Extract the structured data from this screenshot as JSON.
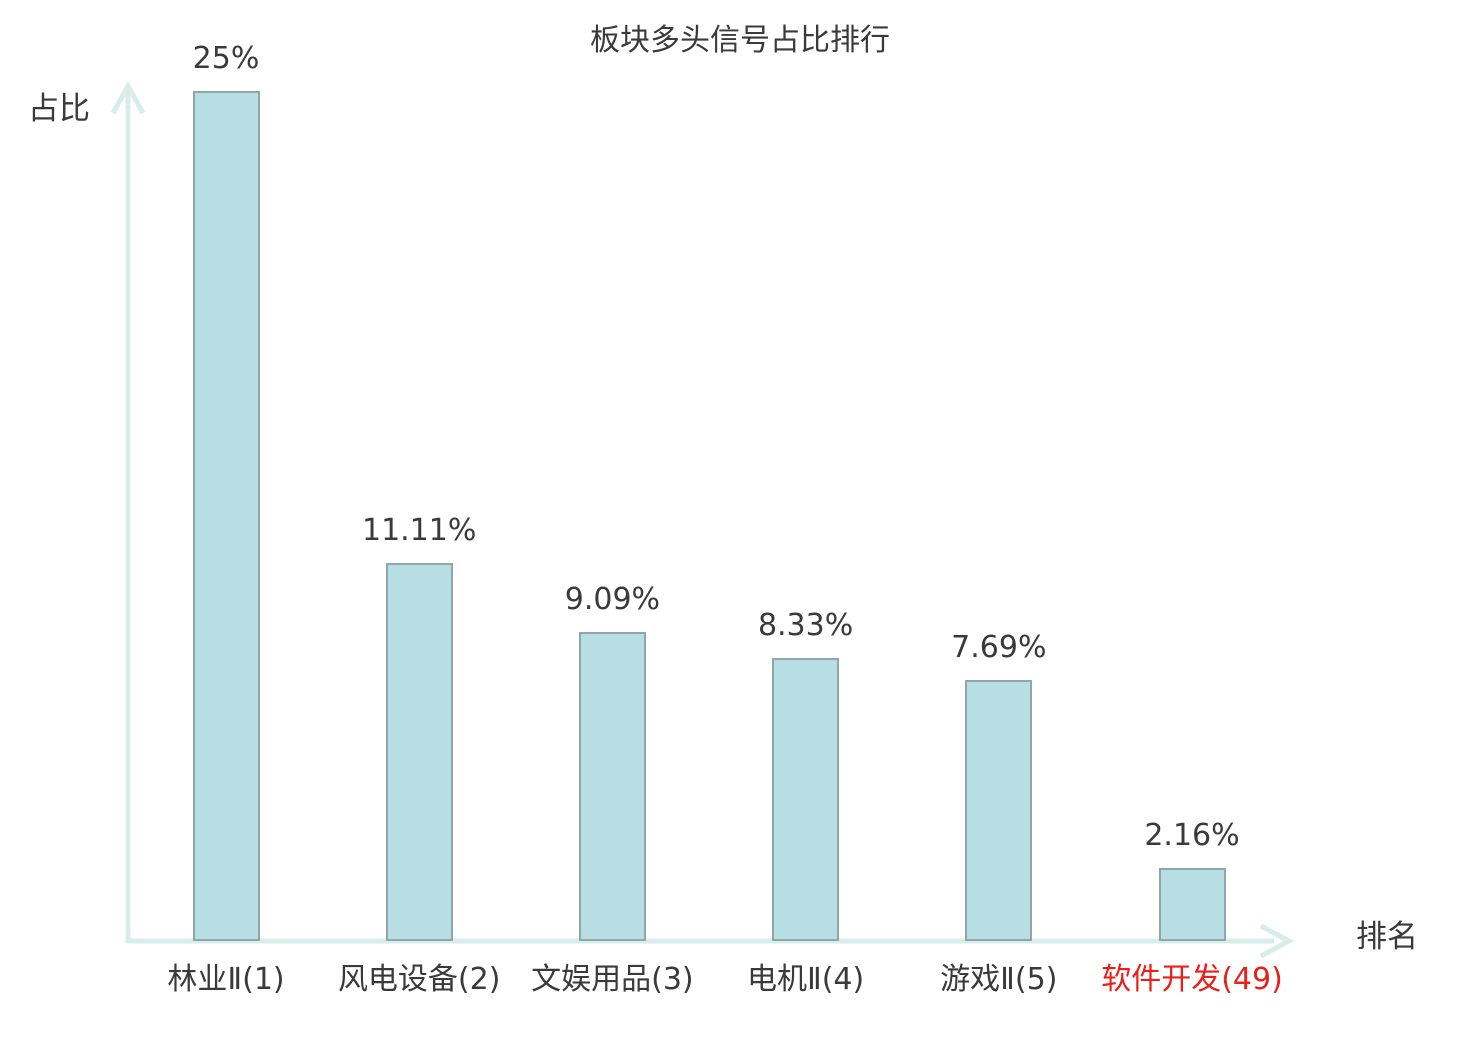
{
  "chart": {
    "title": "板块多头信号占比排行",
    "ylabel": "占比",
    "xlabel": "排名"
  },
  "chart_data": {
    "type": "bar",
    "title": "板块多头信号占比排行",
    "xlabel": "排名",
    "ylabel": "占比",
    "categories": [
      "林业Ⅱ(1)",
      "风电设备(2)",
      "文娱用品(3)",
      "电机Ⅱ(4)",
      "游戏Ⅱ(5)",
      "软件开发(49)"
    ],
    "values": [
      25,
      11.11,
      9.09,
      8.33,
      7.69,
      2.16
    ],
    "value_labels": [
      "25%",
      "11.11%",
      "9.09%",
      "8.33%",
      "7.69%",
      "2.16%"
    ],
    "ranks": [
      1,
      2,
      3,
      4,
      5,
      49
    ],
    "highlight_index": 5,
    "ylim": [
      0,
      25
    ],
    "grid": false,
    "legend_position": "none",
    "colors": {
      "bar_fill": "#b7dee3",
      "bar_border": "#8fa6aa",
      "axis": "#d9ede8",
      "text": "#3a3a3a",
      "highlight_text": "#e8201a",
      "background": "#ffffff"
    }
  }
}
